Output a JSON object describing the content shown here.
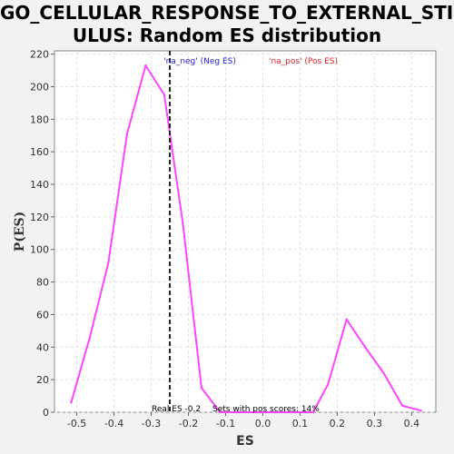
{
  "title_line1": "GO_CELLULAR_RESPONSE_TO_EXTERNAL_STIM",
  "title_line2": "ULUS: Random ES distribution",
  "chart_data": {
    "type": "line",
    "title": "GO_CELLULAR_RESPONSE_TO_EXTERNAL_STIMULUS: Random ES distribution",
    "xlabel": "ES",
    "ylabel": "P(ES)",
    "xlim": [
      -0.56,
      0.465
    ],
    "ylim": [
      0,
      222
    ],
    "x_ticks": [
      "-0.5",
      "-0.4",
      "-0.3",
      "-0.2",
      "-0.1",
      "0.0",
      "0.1",
      "0.2",
      "0.3",
      "0.4"
    ],
    "y_ticks": [
      "0",
      "20",
      "40",
      "60",
      "80",
      "100",
      "120",
      "140",
      "160",
      "180",
      "200",
      "220"
    ],
    "grid": true,
    "series": [
      {
        "color": "#ff44ff",
        "x": [
          -0.515,
          -0.465,
          -0.415,
          -0.365,
          -0.315,
          -0.265,
          -0.215,
          -0.165,
          -0.115,
          -0.065,
          -0.015,
          0.035,
          0.085,
          0.135,
          0.175,
          0.225,
          0.275,
          0.325,
          0.375,
          0.425
        ],
        "y": [
          6,
          46,
          92,
          171,
          213,
          195,
          116,
          15,
          0,
          0,
          0,
          0,
          0,
          0,
          17,
          57,
          40,
          24,
          4,
          1
        ]
      }
    ],
    "real_es": -0.25,
    "annotations": {
      "neg_label": "'na_neg' (Neg ES)",
      "pos_label": "'na_pos' (Pos ES)",
      "real_es_text": "Real ES -0.2",
      "pos_scores_text": "Sets with pos scores: 14%"
    },
    "colors": {
      "neg_label": "#2222dd",
      "pos_label": "#dd2222",
      "real_es_line": "#222222",
      "grid": "#e0e0e0",
      "plot_bg": "#ffffff"
    }
  }
}
